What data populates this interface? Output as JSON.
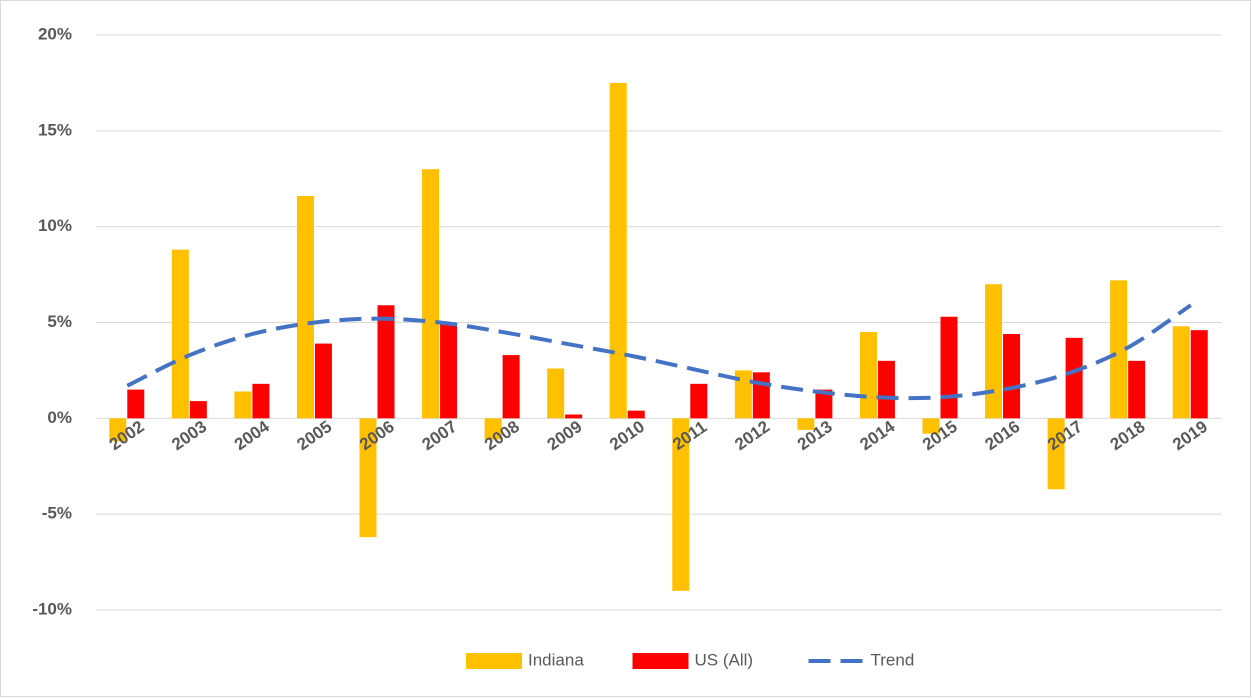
{
  "chart_data": {
    "type": "bar",
    "categories": [
      "2002",
      "2003",
      "2004",
      "2005",
      "2006",
      "2007",
      "2008",
      "2009",
      "2010",
      "2011",
      "2012",
      "2013",
      "2014",
      "2015",
      "2016",
      "2017",
      "2018",
      "2019"
    ],
    "series": [
      {
        "name": "Indiana",
        "color": "#FFC000",
        "values": [
          -1.2,
          8.8,
          1.4,
          11.6,
          -6.2,
          13.0,
          -1.1,
          2.6,
          17.5,
          -9.0,
          2.5,
          -0.6,
          4.5,
          -0.8,
          7.0,
          -3.7,
          7.2,
          4.8
        ]
      },
      {
        "name": "US (All)",
        "color": "#FF0000",
        "values": [
          1.5,
          0.9,
          1.8,
          3.9,
          5.9,
          5.0,
          3.3,
          0.2,
          0.4,
          1.8,
          2.4,
          1.5,
          3.0,
          5.3,
          4.4,
          4.2,
          3.0,
          4.6
        ]
      },
      {
        "name": "Trend",
        "type": "line",
        "dashed": true,
        "color": "#4472C4",
        "values": [
          1.7,
          3.3,
          4.4,
          5.0,
          5.2,
          5.0,
          4.5,
          3.9,
          3.3,
          2.6,
          1.9,
          1.4,
          1.1,
          1.1,
          1.5,
          2.3,
          3.7,
          5.9
        ]
      }
    ],
    "ylim": [
      -10,
      20
    ],
    "yticks": [
      {
        "value": -10,
        "label": "-10%"
      },
      {
        "value": -5,
        "label": "-5%"
      },
      {
        "value": 0,
        "label": "0%"
      },
      {
        "value": 5,
        "label": "5%"
      },
      {
        "value": 10,
        "label": "10%"
      },
      {
        "value": 15,
        "label": "15%"
      },
      {
        "value": 20,
        "label": "20%"
      }
    ],
    "grid": true,
    "legend": "bottom"
  }
}
